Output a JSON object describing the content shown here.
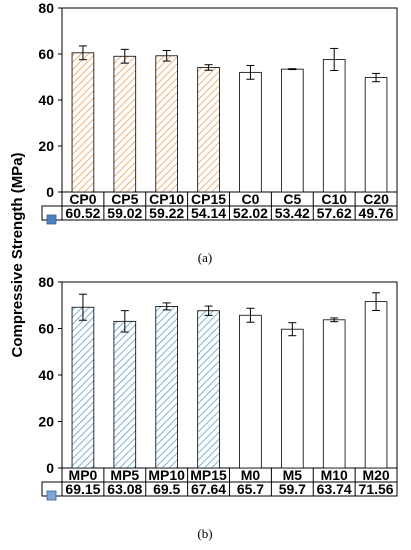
{
  "figure": {
    "ylabel": "Compressive Strength (MPa)"
  },
  "chart_data": [
    {
      "type": "bar",
      "caption": "(a)",
      "ylabel": "Compressive Strength (MPa)",
      "ylim": [
        0,
        80
      ],
      "yticks": [
        0,
        20,
        40,
        60,
        80
      ],
      "categories": [
        "CP0",
        "CP5",
        "CP10",
        "CP15",
        "C0",
        "C5",
        "C10",
        "C20"
      ],
      "values": [
        60.52,
        59.02,
        59.22,
        54.14,
        52.02,
        53.42,
        57.62,
        49.76
      ],
      "value_labels": [
        "60.52",
        "59.02",
        "59.22",
        "54.14",
        "52.02",
        "53.42",
        "57.62",
        "49.76"
      ],
      "errors": [
        3.0,
        3.0,
        2.3,
        1.2,
        3.0,
        0.2,
        4.8,
        1.8
      ],
      "hatched": [
        true,
        true,
        true,
        true,
        false,
        false,
        false,
        false
      ],
      "hatch_color": "#f2b27a",
      "legend_marker_color": "#4f81bd",
      "grid": false
    },
    {
      "type": "bar",
      "caption": "(b)",
      "ylabel": "Compressive Strength (MPa)",
      "ylim": [
        0,
        80
      ],
      "yticks": [
        0,
        20,
        40,
        60,
        80
      ],
      "categories": [
        "MP0",
        "MP5",
        "MP10",
        "MP15",
        "M0",
        "M5",
        "M10",
        "M20"
      ],
      "values": [
        69.15,
        63.08,
        69.5,
        67.64,
        65.7,
        59.7,
        63.74,
        71.56
      ],
      "value_labels": [
        "69.15",
        "63.08",
        "69.5",
        "67.64",
        "65.7",
        "59.7",
        "63.74",
        "71.56"
      ],
      "errors": [
        5.6,
        4.6,
        1.5,
        2.0,
        3.0,
        2.8,
        0.8,
        3.8
      ],
      "hatched": [
        true,
        true,
        true,
        true,
        false,
        false,
        false,
        false
      ],
      "hatch_color": "#7fb3d5",
      "legend_marker_color": "#7fa7dc",
      "grid": false
    }
  ]
}
